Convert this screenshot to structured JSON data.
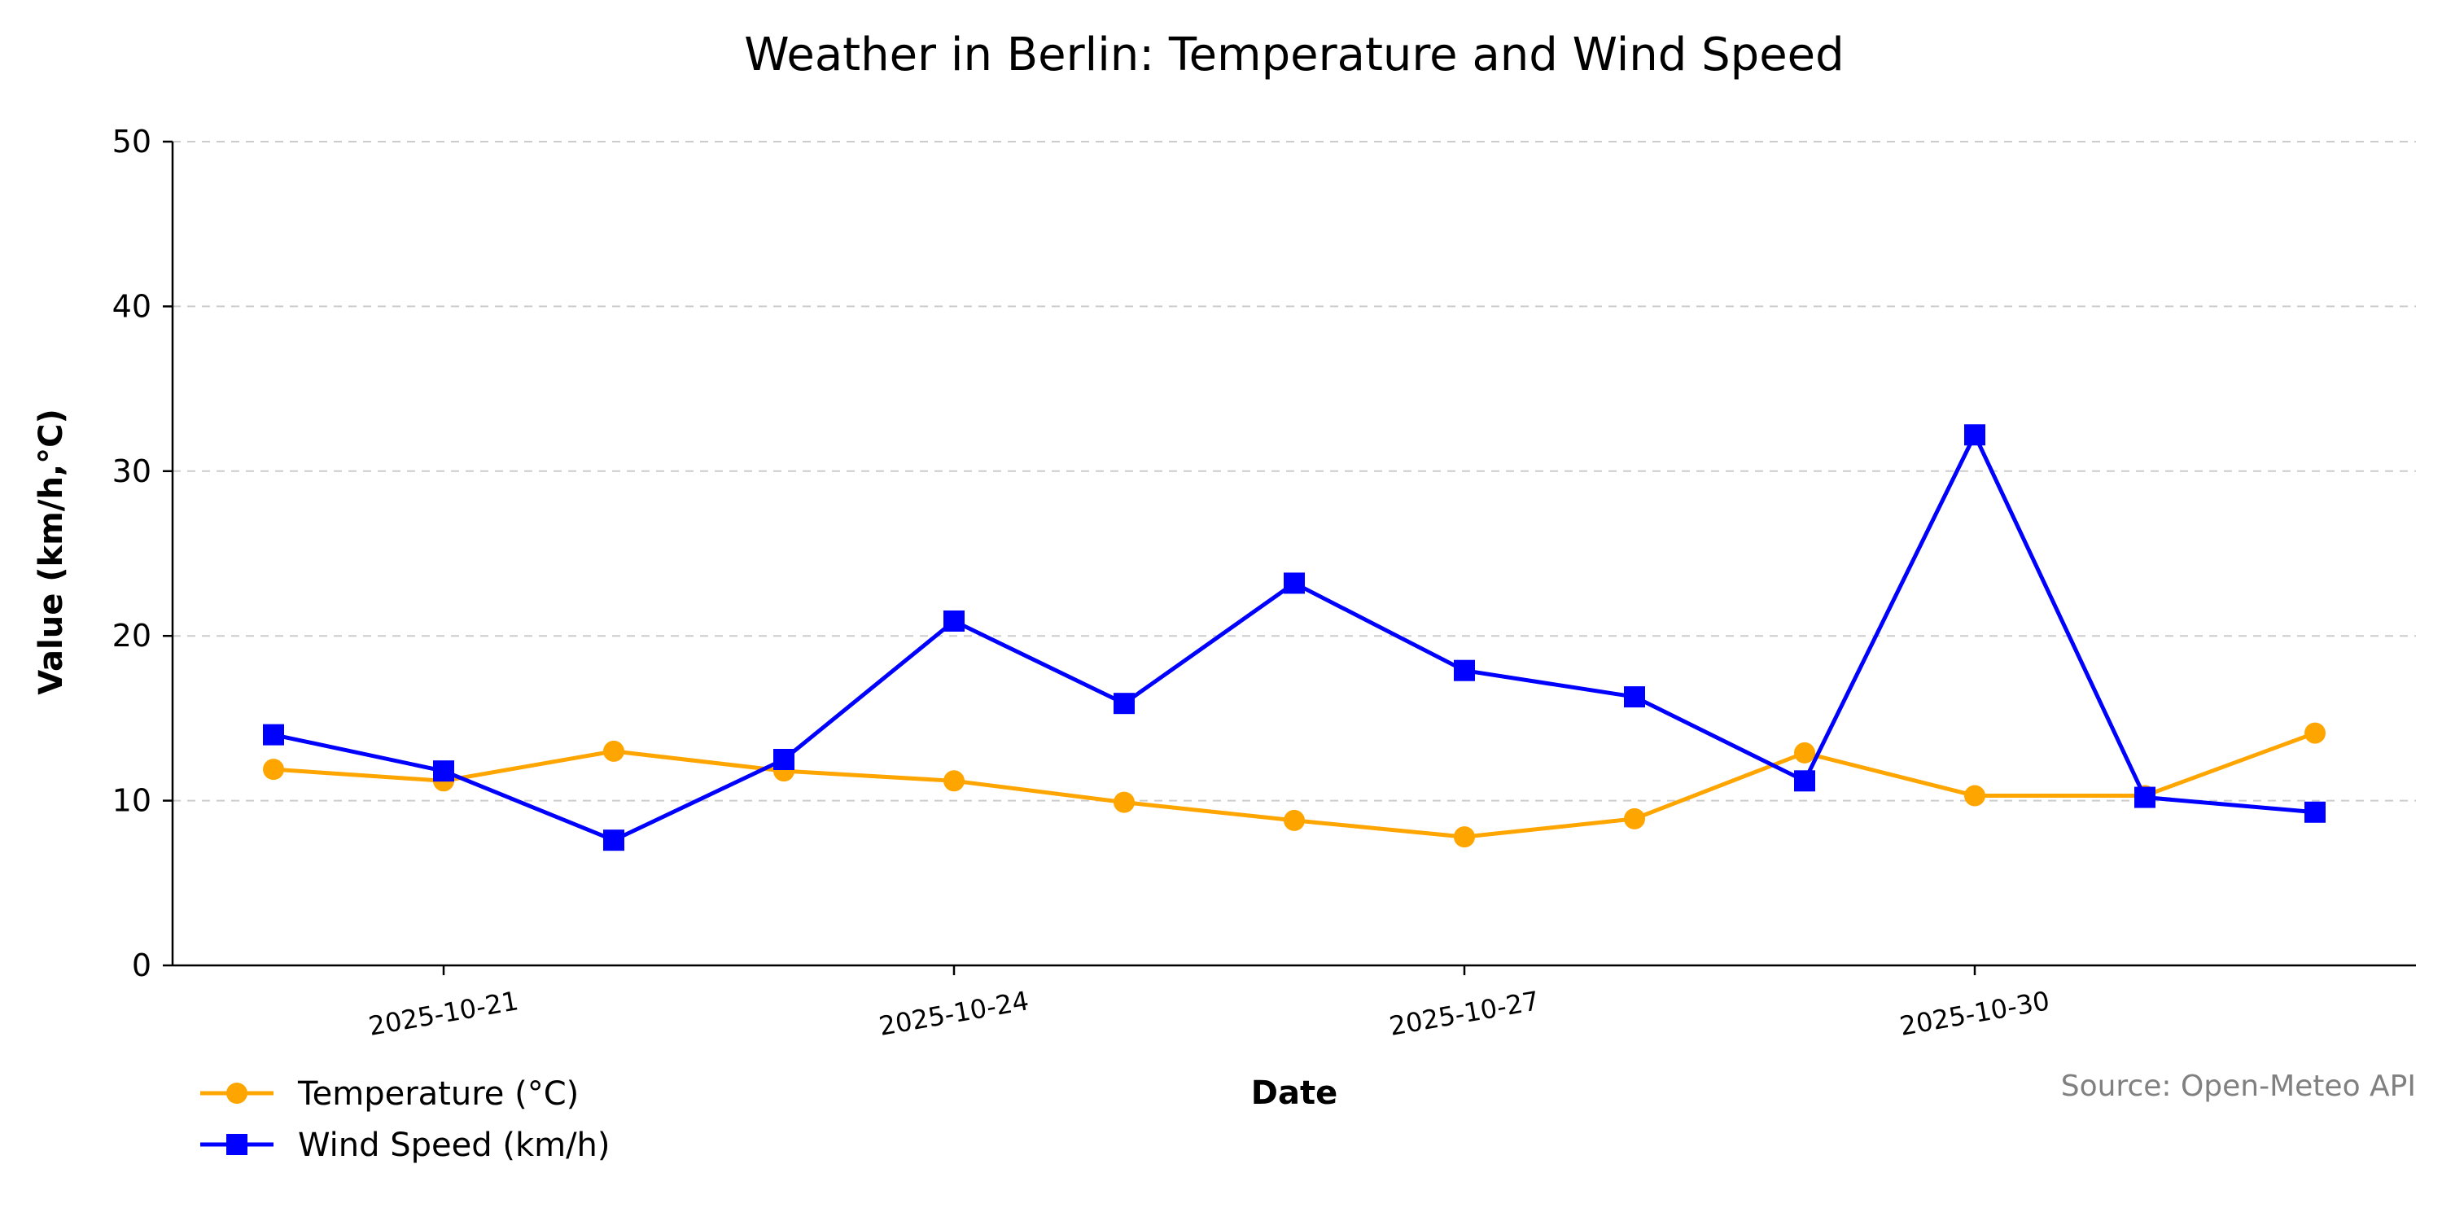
{
  "chart_data": {
    "type": "line",
    "title": "Weather in Berlin: Temperature and Wind Speed",
    "xlabel": "Date",
    "ylabel": "Value (km/h,°C)",
    "x": [
      "2025-10-20",
      "2025-10-21",
      "2025-10-22",
      "2025-10-23",
      "2025-10-24",
      "2025-10-25",
      "2025-10-26",
      "2025-10-27",
      "2025-10-28",
      "2025-10-29",
      "2025-10-30",
      "2025-10-31",
      "2025-11-01"
    ],
    "x_tick_labels": [
      {
        "value": "2025-10-21",
        "label": "2025-10-21"
      },
      {
        "value": "2025-10-24",
        "label": "2025-10-24"
      },
      {
        "value": "2025-10-27",
        "label": "2025-10-27"
      },
      {
        "value": "2025-10-30",
        "label": "2025-10-30"
      }
    ],
    "ylim": [
      0,
      50
    ],
    "y_ticks": [
      0,
      10,
      20,
      30,
      40,
      50
    ],
    "grid": "y-dashed",
    "legend_placement": "bottom-left",
    "series": [
      {
        "name": "Temperature (°C)",
        "color": "#FFA500",
        "marker": "circle",
        "values": [
          11.9,
          11.2,
          13.0,
          11.8,
          11.2,
          9.9,
          8.8,
          7.8,
          8.9,
          12.9,
          10.3,
          10.3,
          14.1
        ]
      },
      {
        "name": "Wind Speed (km/h)",
        "color": "#0000FF",
        "marker": "square",
        "values": [
          14.0,
          11.8,
          7.6,
          12.5,
          20.9,
          15.9,
          23.2,
          17.9,
          16.3,
          11.2,
          32.2,
          10.2,
          9.3
        ]
      }
    ],
    "source": "Source: Open-Meteo API"
  }
}
